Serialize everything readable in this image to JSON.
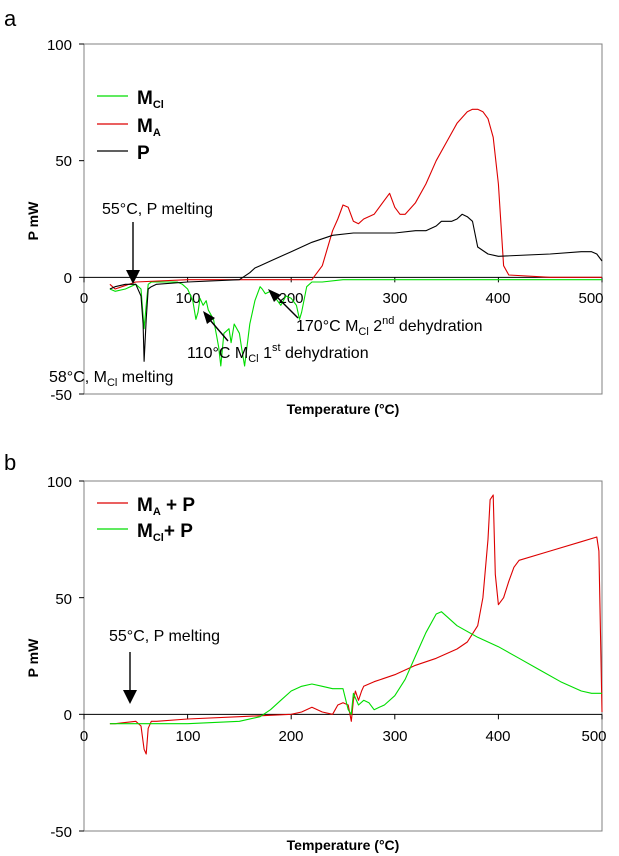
{
  "chart_data": [
    {
      "panel": "a",
      "type": "line",
      "xlabel": "Temperature (°C)",
      "ylabel": "P mW",
      "xlim": [
        0,
        500
      ],
      "ylim": [
        -50,
        100
      ],
      "xticks": [
        0,
        100,
        200,
        300,
        400,
        500
      ],
      "yticks": [
        -50,
        0,
        50,
        100
      ],
      "legend": [
        {
          "base": "M",
          "sub": "Cl",
          "color": "#00dd00"
        },
        {
          "base": "M",
          "sub": "A",
          "color": "#dd0000"
        },
        {
          "base": "P",
          "sub": "",
          "color": "#000000"
        }
      ],
      "annotations": [
        {
          "text": "55°C, P melting"
        },
        {
          "text_a": "58°C, M",
          "sub": "Cl",
          "text_b": " melting"
        },
        {
          "text_a": "110°C M",
          "sub": "Cl",
          "text_b": " 1",
          "sup": "st",
          "text_c": " dehydration"
        },
        {
          "text_a": "170°C M",
          "sub": "Cl",
          "text_b": " 2",
          "sup": "nd",
          "text_c": " dehydration"
        }
      ],
      "series": [
        {
          "name": "MCl",
          "color": "#00dd00",
          "x": [
            25,
            30,
            40,
            50,
            55,
            58,
            60,
            62,
            65,
            68,
            70,
            80,
            90,
            95,
            100,
            105,
            108,
            110,
            112,
            115,
            118,
            120,
            125,
            128,
            130,
            132,
            135,
            140,
            142,
            145,
            150,
            152,
            155,
            160,
            165,
            170,
            172,
            175,
            180,
            185,
            190,
            195,
            200,
            205,
            208,
            210,
            215,
            220,
            230,
            250,
            300,
            350,
            400,
            450,
            500
          ],
          "y": [
            -5,
            -6,
            -5,
            -3,
            -5,
            -22,
            -12,
            -3,
            -2,
            -2,
            -2,
            -2,
            -2,
            -3,
            -5,
            -10,
            -18,
            -15,
            -9,
            -12,
            -10,
            -14,
            -18,
            -25,
            -30,
            -38,
            -24,
            -22,
            -28,
            -20,
            -24,
            -30,
            -38,
            -20,
            -10,
            -4,
            -5,
            -7,
            -6,
            -9,
            -12,
            -8,
            -9,
            -12,
            -18,
            -15,
            -4,
            -2,
            -2,
            -1,
            -1,
            -1,
            -1,
            -1,
            -1
          ]
        },
        {
          "name": "MA",
          "color": "#dd0000",
          "x": [
            25,
            30,
            50,
            100,
            150,
            200,
            220,
            230,
            240,
            245,
            250,
            255,
            260,
            265,
            270,
            280,
            290,
            295,
            300,
            305,
            310,
            320,
            330,
            340,
            350,
            360,
            370,
            375,
            380,
            385,
            390,
            395,
            400,
            405,
            410,
            450,
            500
          ],
          "y": [
            -3,
            -5,
            -2,
            -1,
            -1,
            -1,
            -1,
            5,
            20,
            25,
            31,
            30,
            24,
            23,
            25,
            27,
            33,
            36,
            30,
            27,
            27,
            32,
            40,
            50,
            58,
            66,
            71,
            72,
            72,
            71,
            68,
            60,
            40,
            5,
            1,
            0,
            0
          ]
        },
        {
          "name": "P",
          "color": "#000000",
          "x": [
            25,
            30,
            40,
            50,
            55,
            57,
            58,
            60,
            62,
            65,
            70,
            100,
            150,
            160,
            165,
            170,
            180,
            200,
            220,
            240,
            260,
            280,
            300,
            320,
            330,
            340,
            345,
            350,
            355,
            360,
            365,
            370,
            375,
            380,
            390,
            400,
            450,
            480,
            490,
            495,
            500
          ],
          "y": [
            -5,
            -4,
            -3,
            -3,
            -8,
            -20,
            -36,
            -18,
            -5,
            -4,
            -3,
            -2,
            -1,
            2,
            4,
            5,
            7,
            11,
            15,
            18,
            19,
            19,
            19,
            20,
            20,
            22,
            24,
            24,
            24,
            25,
            27,
            26,
            24,
            13,
            10,
            9,
            10,
            11,
            11,
            10,
            7
          ]
        }
      ]
    },
    {
      "panel": "b",
      "type": "line",
      "xlabel": "Temperature (°C)",
      "ylabel": "P mW",
      "xlim": [
        0,
        500
      ],
      "ylim": [
        -50,
        100
      ],
      "xticks": [
        0,
        100,
        200,
        300,
        400,
        500
      ],
      "yticks": [
        -50,
        0,
        50,
        100
      ],
      "legend": [
        {
          "base": "M",
          "sub": "A",
          "suffix": " + P",
          "color": "#dd0000"
        },
        {
          "base": "M",
          "sub": "Cl",
          "suffix": "+ P",
          "color": "#00dd00"
        }
      ],
      "annotations": [
        {
          "text": "55°C, P melting"
        }
      ],
      "series": [
        {
          "name": "MA + P",
          "color": "#dd0000",
          "x": [
            25,
            30,
            50,
            55,
            58,
            60,
            62,
            65,
            70,
            100,
            150,
            200,
            210,
            220,
            230,
            240,
            245,
            250,
            255,
            258,
            260,
            262,
            265,
            268,
            270,
            275,
            280,
            300,
            320,
            340,
            360,
            370,
            380,
            385,
            390,
            392,
            395,
            397,
            400,
            405,
            410,
            415,
            420,
            450,
            480,
            495,
            497,
            500
          ],
          "y": [
            -4,
            -4,
            -3,
            -5,
            -15,
            -17,
            -6,
            -3,
            -3,
            -2,
            -1,
            0,
            1,
            3,
            1,
            0,
            4,
            5,
            4,
            -3,
            6,
            10,
            6,
            10,
            12,
            13,
            14,
            17,
            21,
            24,
            28,
            31,
            38,
            50,
            75,
            92,
            94,
            60,
            47,
            50,
            57,
            63,
            66,
            70,
            74,
            76,
            70,
            1
          ]
        },
        {
          "name": "MCl+ P",
          "color": "#00dd00",
          "x": [
            25,
            50,
            100,
            150,
            170,
            180,
            190,
            200,
            210,
            220,
            230,
            240,
            250,
            255,
            258,
            260,
            262,
            265,
            270,
            275,
            280,
            285,
            290,
            300,
            310,
            320,
            330,
            340,
            345,
            350,
            360,
            380,
            400,
            420,
            440,
            460,
            480,
            490,
            500
          ],
          "y": [
            -4,
            -4,
            -4,
            -3,
            -1,
            2,
            6,
            10,
            12,
            13,
            12,
            11,
            11,
            2,
            0,
            9,
            7,
            4,
            6,
            5,
            2,
            3,
            4,
            8,
            15,
            25,
            35,
            43,
            44,
            42,
            38,
            33,
            29,
            24,
            19,
            14,
            10,
            9,
            9
          ]
        }
      ]
    }
  ]
}
